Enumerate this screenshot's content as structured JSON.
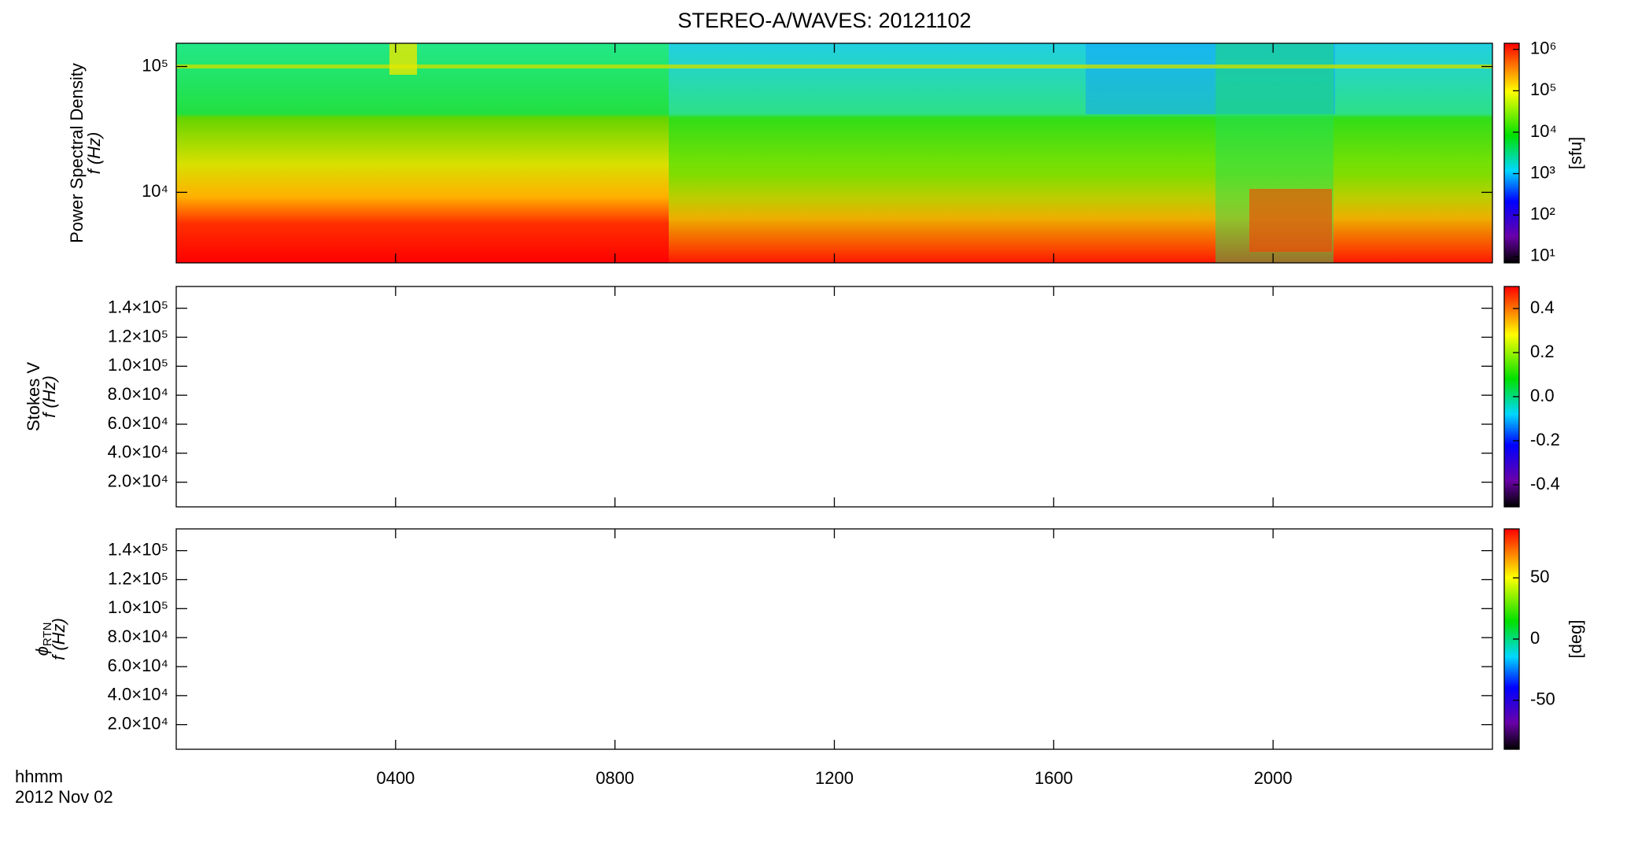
{
  "title": "STEREO-A/WAVES: 20121102",
  "x_label_lines": [
    "hhmm",
    "2012 Nov 02"
  ],
  "xlim": [
    0,
    24
  ],
  "xticks": [
    {
      "value": 4,
      "label": "0400"
    },
    {
      "value": 8,
      "label": "0800"
    },
    {
      "value": 12,
      "label": "1200"
    },
    {
      "value": 16,
      "label": "1600"
    },
    {
      "value": 20,
      "label": "2000"
    }
  ],
  "chart_data": [
    {
      "type": "spectrogram",
      "ylabel": [
        "Power Spectral Density",
        "f (Hz)"
      ],
      "log_y": true,
      "ylim": [
        2750,
        153000
      ],
      "yticks": [
        {
          "value": 10000,
          "label": "10⁴"
        },
        {
          "value": 100000,
          "label": "10⁵"
        }
      ],
      "clim": [
        7,
        1400000
      ],
      "log_c": true,
      "cticks": [
        {
          "value": 10,
          "label": "10¹"
        },
        {
          "value": 100,
          "label": "10²"
        },
        {
          "value": 1000,
          "label": "10³"
        },
        {
          "value": 10000,
          "label": "10⁴"
        },
        {
          "value": 100000,
          "label": "10⁵"
        },
        {
          "value": 1000000,
          "label": "10⁶"
        }
      ],
      "clabel": "[sfu]"
    },
    {
      "type": "spectrogram",
      "ylabel": [
        "Stokes V",
        "f (Hz)"
      ],
      "log_y": false,
      "ylim": [
        3000,
        155000
      ],
      "yticks": [
        {
          "value": 20000,
          "label": "2.0×10⁴"
        },
        {
          "value": 40000,
          "label": "4.0×10⁴"
        },
        {
          "value": 60000,
          "label": "6.0×10⁴"
        },
        {
          "value": 80000,
          "label": "8.0×10⁴"
        },
        {
          "value": 100000,
          "label": "1.0×10⁵"
        },
        {
          "value": 120000,
          "label": "1.2×10⁵"
        },
        {
          "value": 140000,
          "label": "1.4×10⁵"
        }
      ],
      "clim": [
        -0.5,
        0.5
      ],
      "log_c": false,
      "cticks": [
        {
          "value": -0.4,
          "label": "-0.4"
        },
        {
          "value": -0.2,
          "label": "-0.2"
        },
        {
          "value": 0,
          "label": "0.0"
        },
        {
          "value": 0.2,
          "label": "0.2"
        },
        {
          "value": 0.4,
          "label": "0.4"
        }
      ]
    },
    {
      "type": "spectrogram",
      "ylabel": [
        "ϕ",
        "f (Hz)"
      ],
      "ylabel_subscript": "RTN",
      "log_y": false,
      "ylim": [
        3000,
        155000
      ],
      "yticks": [
        {
          "value": 20000,
          "label": "2.0×10⁴"
        },
        {
          "value": 40000,
          "label": "4.0×10⁴"
        },
        {
          "value": 60000,
          "label": "6.0×10⁴"
        },
        {
          "value": 80000,
          "label": "8.0×10⁴"
        },
        {
          "value": 100000,
          "label": "1.0×10⁵"
        },
        {
          "value": 120000,
          "label": "1.2×10⁵"
        },
        {
          "value": 140000,
          "label": "1.4×10⁵"
        }
      ],
      "clim": [
        -90,
        90
      ],
      "log_c": false,
      "cticks": [
        -50,
        0,
        50
      ],
      "clabel": "[deg]"
    }
  ]
}
